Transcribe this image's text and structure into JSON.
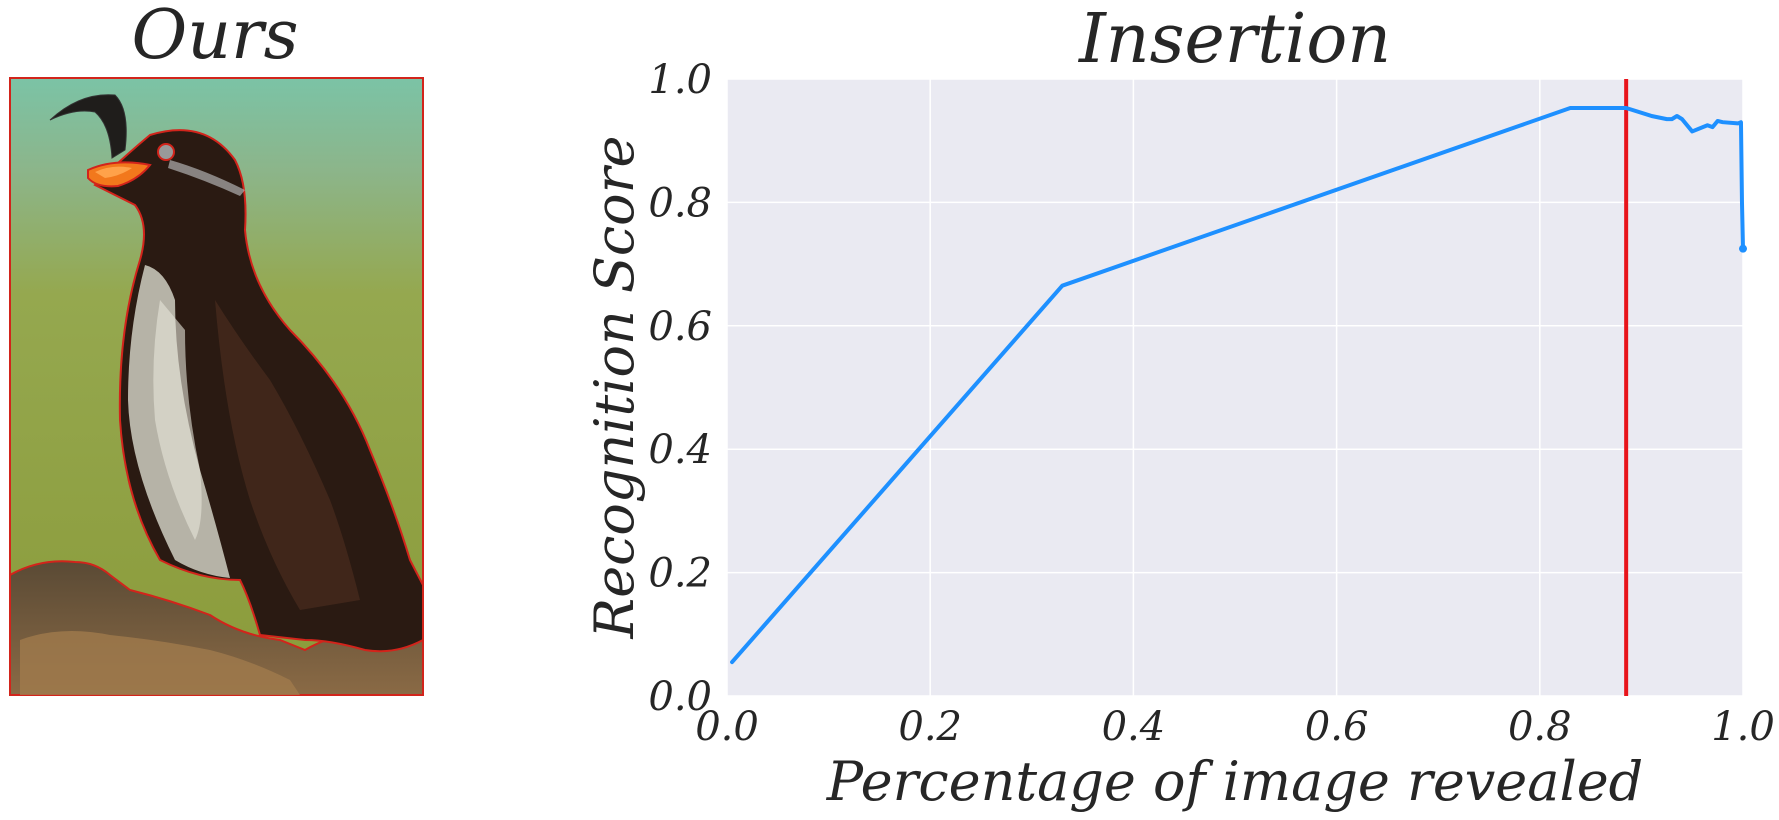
{
  "left_panel": {
    "title": "Ours",
    "image_subject": "bird photograph with red segmentation outline"
  },
  "chart_data": {
    "type": "line",
    "title": "Insertion",
    "xlabel": "Percentage of image revealed",
    "ylabel": "Recognition Score",
    "xlim": [
      0.0,
      1.0
    ],
    "ylim": [
      0.0,
      1.0
    ],
    "xticks": [
      "0.0",
      "0.2",
      "0.4",
      "0.6",
      "0.8",
      "1.0"
    ],
    "yticks": [
      "0.0",
      "0.2",
      "0.4",
      "0.6",
      "0.8",
      "1.0"
    ],
    "grid": true,
    "background_color": "#EAEAF2",
    "series": [
      {
        "color": "#1E90FF",
        "x": [
          0.005,
          0.33,
          0.83,
          0.885,
          0.91,
          0.925,
          0.93,
          0.935,
          0.94,
          0.95,
          0.965,
          0.97,
          0.975,
          0.98,
          0.995,
          0.998,
          0.999,
          1.0
        ],
        "y": [
          0.055,
          0.665,
          0.953,
          0.953,
          0.94,
          0.935,
          0.935,
          0.94,
          0.935,
          0.915,
          0.925,
          0.922,
          0.932,
          0.93,
          0.928,
          0.93,
          0.8,
          0.725
        ]
      }
    ],
    "vertical_line": {
      "x": 0.885,
      "color": "#E8141B"
    }
  }
}
